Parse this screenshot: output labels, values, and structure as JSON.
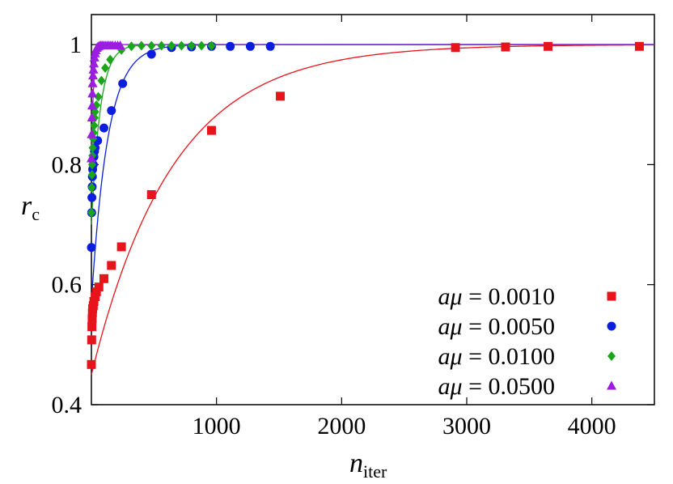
{
  "chart_data": {
    "type": "scatter",
    "title": "",
    "xlabel": "n",
    "xlabel_sub": "iter",
    "ylabel": "r",
    "ylabel_sub": "c",
    "xlim": [
      0,
      4500
    ],
    "ylim": [
      0.4,
      1.05
    ],
    "xticks": [
      1000,
      2000,
      3000,
      4000
    ],
    "xtick_labels": [
      "1000",
      "2000",
      "3000",
      "4000"
    ],
    "yticks": [
      0.4,
      0.6,
      0.8,
      1.0
    ],
    "ytick_labels": [
      "0.4",
      "0.6",
      "0.8",
      "1"
    ],
    "grid": false,
    "legend_position": "bottom-right",
    "reference_line": {
      "y": 1.0,
      "style": "dotted"
    },
    "series": [
      {
        "name_prefix": "aμ",
        "name_value": "= 0.0010",
        "color": "#e8141b",
        "marker": "square",
        "fit": {
          "a": 0.55,
          "tau": 650
        },
        "points": [
          [
            0,
            0.467
          ],
          [
            2,
            0.508
          ],
          [
            4,
            0.53
          ],
          [
            6,
            0.543
          ],
          [
            8,
            0.553
          ],
          [
            10,
            0.56
          ],
          [
            15,
            0.565
          ],
          [
            20,
            0.572
          ],
          [
            30,
            0.58
          ],
          [
            40,
            0.588
          ],
          [
            60,
            0.596
          ],
          [
            100,
            0.61
          ],
          [
            160,
            0.632
          ],
          [
            240,
            0.663
          ],
          [
            480,
            0.75
          ],
          [
            960,
            0.857
          ],
          [
            1510,
            0.914
          ],
          [
            2910,
            0.995
          ],
          [
            3310,
            0.996
          ],
          [
            3650,
            0.997
          ],
          [
            4380,
            0.997
          ]
        ]
      },
      {
        "name_prefix": "aμ",
        "name_value": "= 0.0050",
        "color": "#0b1ddf",
        "marker": "circle",
        "fit": {
          "a": 0.43,
          "tau": 130
        },
        "points": [
          [
            0,
            0.662
          ],
          [
            2,
            0.72
          ],
          [
            4,
            0.745
          ],
          [
            6,
            0.763
          ],
          [
            8,
            0.78
          ],
          [
            10,
            0.792
          ],
          [
            15,
            0.8
          ],
          [
            20,
            0.813
          ],
          [
            25,
            0.822
          ],
          [
            30,
            0.828
          ],
          [
            50,
            0.84
          ],
          [
            100,
            0.861
          ],
          [
            160,
            0.89
          ],
          [
            250,
            0.935
          ],
          [
            480,
            0.984
          ],
          [
            640,
            0.995
          ],
          [
            800,
            0.996
          ],
          [
            960,
            0.997
          ],
          [
            1110,
            0.997
          ],
          [
            1270,
            0.997
          ],
          [
            1430,
            0.997
          ]
        ]
      },
      {
        "name_prefix": "aμ",
        "name_value": "= 0.0100",
        "color": "#1aa51a",
        "marker": "diamond",
        "fit": {
          "a": 0.3,
          "tau": 70
        },
        "points": [
          [
            0,
            0.72
          ],
          [
            2,
            0.762
          ],
          [
            4,
            0.783
          ],
          [
            6,
            0.8
          ],
          [
            8,
            0.815
          ],
          [
            10,
            0.828
          ],
          [
            14,
            0.843
          ],
          [
            18,
            0.853
          ],
          [
            22,
            0.865
          ],
          [
            26,
            0.878
          ],
          [
            30,
            0.888
          ],
          [
            40,
            0.899
          ],
          [
            55,
            0.913
          ],
          [
            80,
            0.94
          ],
          [
            110,
            0.961
          ],
          [
            150,
            0.975
          ],
          [
            240,
            0.991
          ],
          [
            320,
            0.997
          ],
          [
            400,
            0.998
          ],
          [
            480,
            0.998
          ],
          [
            560,
            0.998
          ],
          [
            640,
            0.998
          ],
          [
            720,
            0.998
          ],
          [
            800,
            0.998
          ],
          [
            880,
            0.998
          ],
          [
            960,
            0.998
          ]
        ]
      },
      {
        "name_prefix": "aμ",
        "name_value": "= 0.0500",
        "color": "#9a1de0",
        "marker": "triangle",
        "fit": {
          "a": 0.19,
          "tau": 18
        },
        "points": [
          [
            0,
            0.81
          ],
          [
            2,
            0.85
          ],
          [
            4,
            0.878
          ],
          [
            6,
            0.898
          ],
          [
            8,
            0.918
          ],
          [
            10,
            0.935
          ],
          [
            13,
            0.948
          ],
          [
            16,
            0.958
          ],
          [
            20,
            0.968
          ],
          [
            25,
            0.978
          ],
          [
            30,
            0.985
          ],
          [
            36,
            0.99
          ],
          [
            44,
            0.994
          ],
          [
            52,
            0.996
          ],
          [
            62,
            0.997
          ],
          [
            72,
            0.998
          ],
          [
            84,
            0.998
          ],
          [
            96,
            0.998
          ],
          [
            110,
            0.998
          ],
          [
            125,
            0.998
          ],
          [
            140,
            0.998
          ],
          [
            155,
            0.998
          ],
          [
            170,
            0.998
          ],
          [
            190,
            0.998
          ],
          [
            210,
            0.998
          ],
          [
            230,
            0.998
          ]
        ]
      }
    ]
  }
}
